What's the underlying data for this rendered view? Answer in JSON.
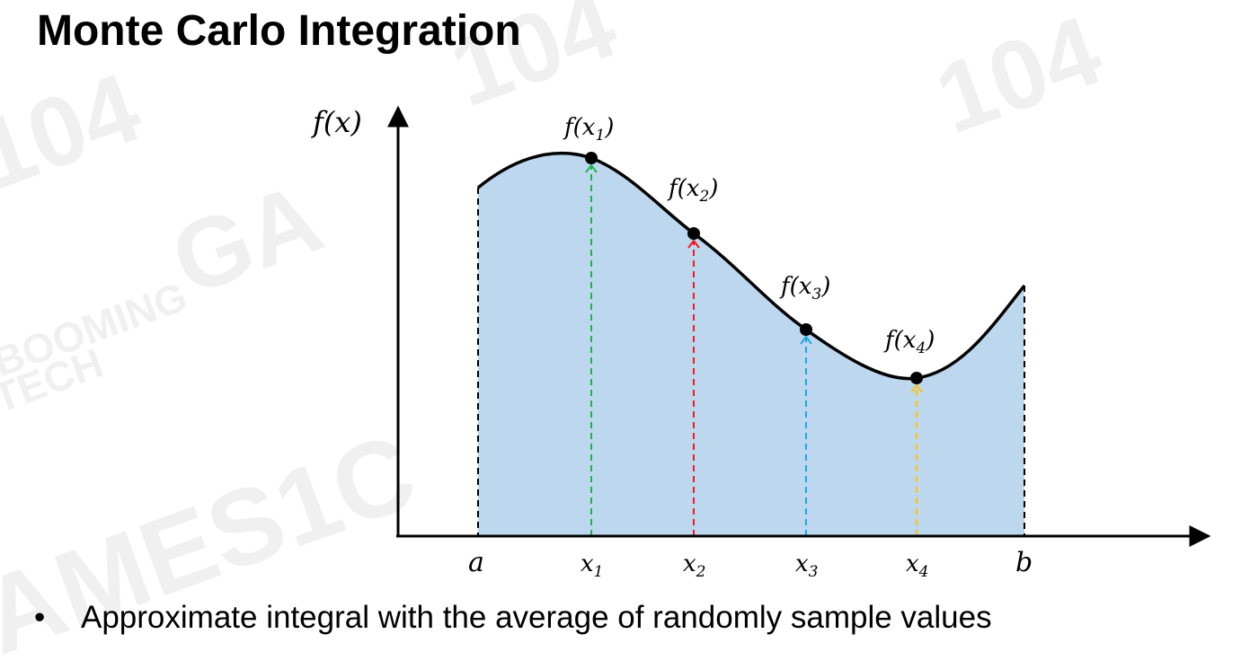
{
  "title": "Monte Carlo Integration",
  "bullet": {
    "marker": "•",
    "text": "Approximate integral with the average of randomly sample values"
  },
  "watermark": {
    "texts": [
      "GAMES104",
      "GA",
      "BOOMING",
      "TECH"
    ],
    "color": "#f0f0f0"
  },
  "diagram": {
    "y_axis_label": "f(x)",
    "x_axis_labels": {
      "a": "a",
      "b": "b"
    },
    "fill_color": "#bdd7ee",
    "curve_color": "#000000",
    "samples": [
      {
        "x_label": "x",
        "x_sub": "1",
        "f_label": "f(x",
        "f_sub": "1",
        "f_close": ")",
        "color": "#22b14c"
      },
      {
        "x_label": "x",
        "x_sub": "2",
        "f_label": "f(x",
        "f_sub": "2",
        "f_close": ")",
        "color": "#ed1c24"
      },
      {
        "x_label": "x",
        "x_sub": "3",
        "f_label": "f(x",
        "f_sub": "3",
        "f_close": ")",
        "color": "#1ea7e8"
      },
      {
        "x_label": "x",
        "x_sub": "4",
        "f_label": "f(x",
        "f_sub": "4",
        "f_close": ")",
        "color": "#ffc20e"
      }
    ]
  }
}
